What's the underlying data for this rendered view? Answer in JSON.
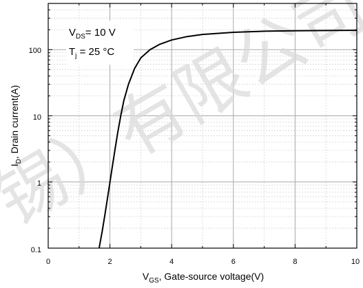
{
  "chart_data": {
    "type": "line",
    "title": "",
    "xlabel": {
      "main": "V",
      "sub": "GS",
      "rest": ", Gate-source voltage(V)"
    },
    "ylabel": {
      "main": "I",
      "sub": "D",
      "rest": ", Drain current(A)"
    },
    "xlim": [
      0,
      10
    ],
    "ylim": [
      0.1,
      500
    ],
    "yscale": "log",
    "grid": true,
    "x_ticks": [
      0,
      2,
      4,
      6,
      8,
      10
    ],
    "x_tick_labels": [
      "0",
      "2",
      "4",
      "6",
      "8",
      "10"
    ],
    "y_ticks": [
      0.1,
      1,
      10,
      100
    ],
    "y_tick_labels": [
      "0.1",
      "1",
      "10",
      "100"
    ],
    "annotations": {
      "vds": {
        "main": "V",
        "sub": "DS",
        "rest": "= 10 V"
      },
      "tj": {
        "main": "T",
        "sub": "j",
        "rest": " = 25 °C"
      }
    },
    "series": [
      {
        "color": "#000000",
        "x": [
          1.65,
          1.75,
          1.85,
          1.95,
          2.05,
          2.15,
          2.25,
          2.35,
          2.45,
          2.6,
          2.8,
          3.0,
          3.3,
          3.6,
          4.0,
          4.5,
          5.0,
          6.0,
          7.0,
          8.0,
          9.0,
          10.0
        ],
        "y": [
          0.1,
          0.18,
          0.35,
          0.7,
          1.4,
          2.8,
          5.5,
          10,
          17,
          30,
          52,
          75,
          100,
          120,
          140,
          158,
          170,
          183,
          190,
          193,
          195,
          196
        ]
      }
    ]
  },
  "watermark": "锡）有限公司"
}
